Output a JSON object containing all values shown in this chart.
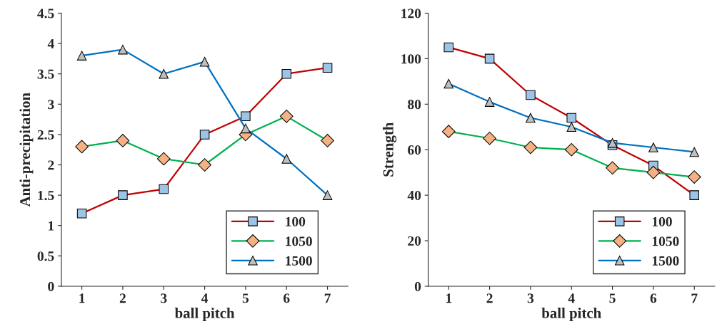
{
  "chart_data": [
    {
      "type": "line",
      "xlabel": "ball pitch",
      "ylabel": "Anti-precipitation",
      "categories": [
        "1",
        "2",
        "3",
        "4",
        "5",
        "6",
        "7"
      ],
      "ylim": [
        0,
        4.5
      ],
      "yticks": [
        0,
        0.5,
        1,
        1.5,
        2,
        2.5,
        3,
        3.5,
        4,
        4.5
      ],
      "grid": false,
      "legend": "bottom right",
      "series": [
        {
          "name": "100",
          "color": "#c00000",
          "marker": "square",
          "values": [
            1.2,
            1.5,
            1.6,
            2.5,
            2.8,
            3.5,
            3.6
          ]
        },
        {
          "name": "1050",
          "color": "#00b050",
          "marker": "diamond",
          "values": [
            2.3,
            2.4,
            2.1,
            2.0,
            2.5,
            2.8,
            2.4
          ]
        },
        {
          "name": "1500",
          "color": "#0070c0",
          "marker": "triangle",
          "values": [
            3.8,
            3.9,
            3.5,
            3.7,
            2.6,
            2.1,
            1.5
          ]
        }
      ]
    },
    {
      "type": "line",
      "xlabel": "ball pitch",
      "ylabel": "Strength",
      "categories": [
        "1",
        "2",
        "3",
        "4",
        "5",
        "6",
        "7"
      ],
      "ylim": [
        0,
        120
      ],
      "yticks": [
        0,
        20,
        40,
        60,
        80,
        100,
        120
      ],
      "grid": false,
      "legend": "bottom right",
      "series": [
        {
          "name": "100",
          "color": "#c00000",
          "marker": "square",
          "values": [
            105,
            100,
            84,
            74,
            62,
            53,
            40
          ]
        },
        {
          "name": "1050",
          "color": "#00b050",
          "marker": "diamond",
          "values": [
            68,
            65,
            61,
            60,
            52,
            50,
            48
          ]
        },
        {
          "name": "1500",
          "color": "#0070c0",
          "marker": "triangle",
          "values": [
            89,
            81,
            74,
            70,
            63,
            61,
            59
          ]
        }
      ]
    }
  ]
}
